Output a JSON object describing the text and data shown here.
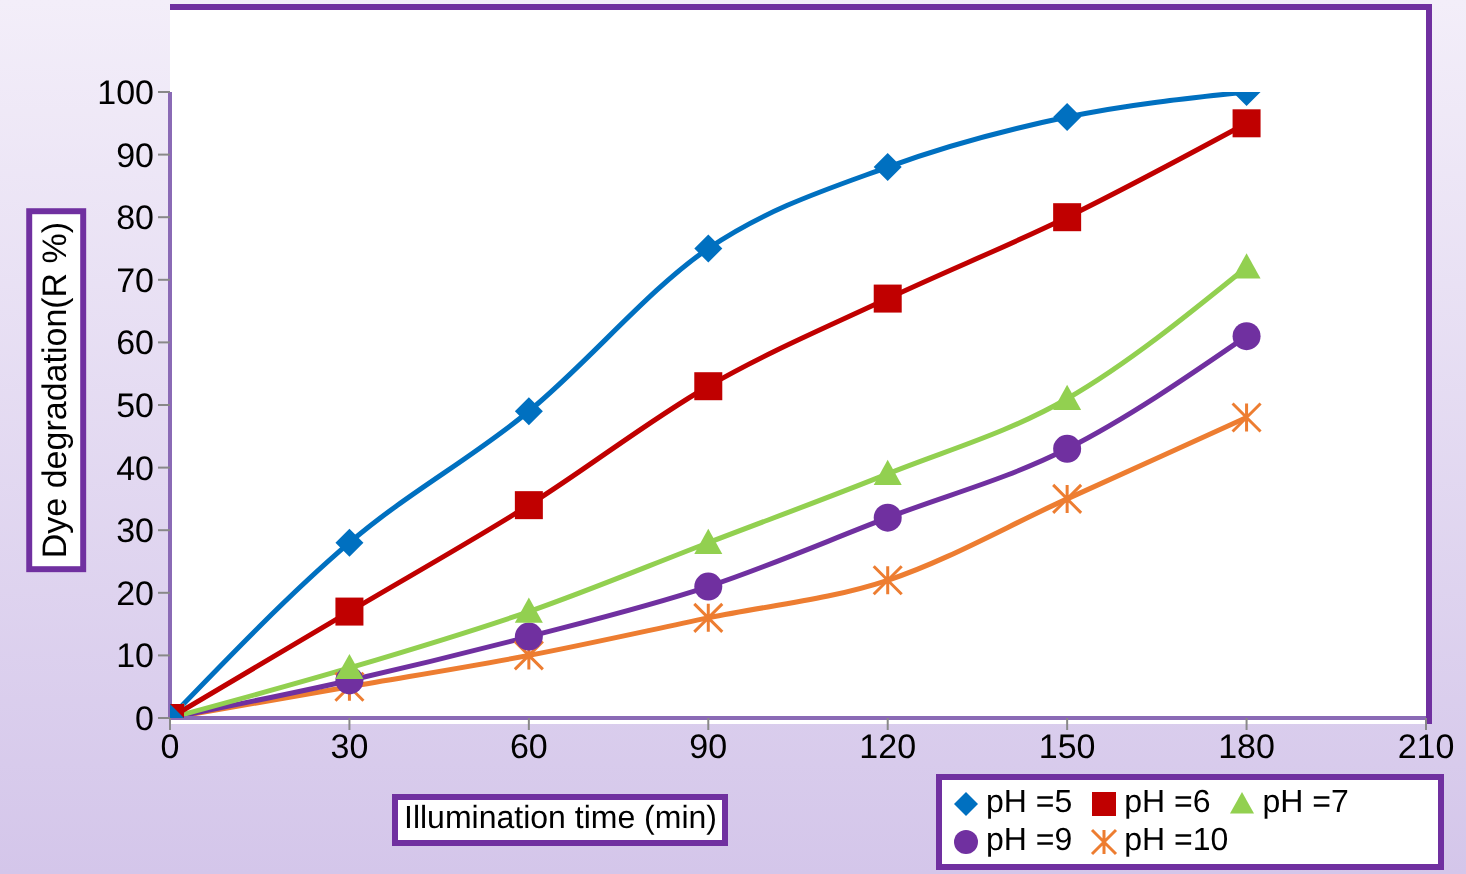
{
  "chart_data": {
    "type": "line",
    "xlabel": "Illumination time (min)",
    "ylabel": "Dye degradation(R %)",
    "x": [
      0,
      30,
      60,
      90,
      120,
      150,
      180
    ],
    "xlim": [
      0,
      210
    ],
    "xticks": [
      0,
      30,
      60,
      90,
      120,
      150,
      180,
      210
    ],
    "ylim": [
      0,
      100
    ],
    "yticks": [
      0,
      10,
      20,
      30,
      40,
      50,
      60,
      70,
      80,
      90,
      100
    ],
    "grid": false,
    "legend": "bottom right",
    "series": [
      {
        "name": "pH =5",
        "color": "#0070c0",
        "marker": "diamond",
        "values": [
          0,
          28,
          49,
          75,
          88,
          96,
          100
        ]
      },
      {
        "name": "pH =6",
        "color": "#c00000",
        "marker": "square",
        "values": [
          0,
          17,
          34,
          53,
          67,
          80,
          95
        ]
      },
      {
        "name": "pH =7",
        "color": "#92d050",
        "marker": "triangle",
        "values": [
          0,
          8,
          17,
          28,
          39,
          51,
          72
        ]
      },
      {
        "name": "pH =9",
        "color": "#7030a0",
        "marker": "circle",
        "values": [
          0,
          6,
          13,
          21,
          32,
          43,
          61
        ]
      },
      {
        "name": "pH =10",
        "color": "#ed7d31",
        "marker": "cross",
        "values": [
          0,
          5,
          10,
          16,
          22,
          35,
          48
        ]
      }
    ]
  }
}
